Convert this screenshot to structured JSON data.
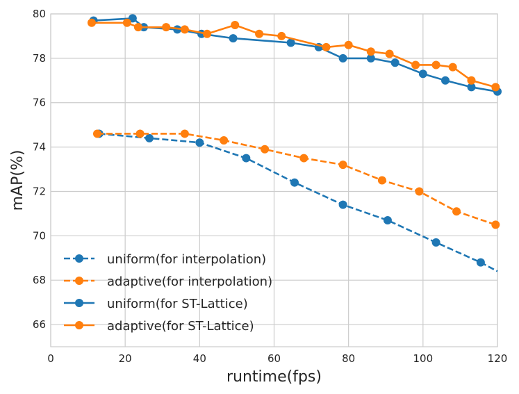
{
  "chart_data": {
    "type": "line",
    "title": "",
    "xlabel": "runtime(fps)",
    "ylabel": "mAP(%)",
    "xlim": [
      0,
      120
    ],
    "ylim": [
      65,
      80
    ],
    "xticks": [
      0,
      20,
      40,
      60,
      80,
      100,
      120
    ],
    "yticks": [
      66,
      68,
      70,
      72,
      74,
      76,
      78,
      80
    ],
    "grid": true,
    "legend_position": "lower-left",
    "series": [
      {
        "name": "uniform(for interpolation)",
        "color": "#1f77b4",
        "linestyle": "dashed",
        "x": [
          13,
          26.5,
          40,
          52.5,
          65.5,
          78.5,
          90.5,
          103.5,
          115.5,
          120
        ],
        "y": [
          74.6,
          74.4,
          74.2,
          73.5,
          72.4,
          71.4,
          70.7,
          69.7,
          68.8,
          68.4
        ],
        "markers": [
          true,
          true,
          true,
          true,
          true,
          true,
          true,
          true,
          true,
          false
        ]
      },
      {
        "name": "adaptive(for interpolation)",
        "color": "#ff7f0e",
        "linestyle": "dashed",
        "x": [
          12.5,
          24,
          36,
          46.5,
          57.5,
          68,
          78.5,
          89,
          99,
          109,
          119.5
        ],
        "y": [
          74.6,
          74.6,
          74.6,
          74.3,
          73.9,
          73.5,
          73.2,
          72.5,
          72.0,
          71.1,
          70.5
        ],
        "markers": [
          true,
          true,
          true,
          true,
          true,
          true,
          true,
          true,
          true,
          true,
          true
        ]
      },
      {
        "name": "uniform(for ST-Lattice)",
        "color": "#1f77b4",
        "linestyle": "solid",
        "x": [
          11.5,
          22,
          25,
          34,
          40.5,
          49,
          64.5,
          72,
          78.5,
          86,
          92.5,
          100,
          106,
          113,
          120
        ],
        "y": [
          79.7,
          79.8,
          79.4,
          79.3,
          79.1,
          78.9,
          78.7,
          78.5,
          78.0,
          78.0,
          77.8,
          77.3,
          77.0,
          76.7,
          76.5
        ],
        "markers": [
          true,
          true,
          true,
          true,
          true,
          true,
          true,
          true,
          true,
          true,
          true,
          true,
          true,
          true,
          true
        ]
      },
      {
        "name": "adaptive(for ST-Lattice)",
        "color": "#ff7f0e",
        "linestyle": "solid",
        "x": [
          11,
          20.5,
          23.5,
          31,
          36,
          42,
          49.5,
          56,
          62,
          74,
          80,
          86,
          91,
          98,
          103.5,
          108,
          113,
          119.5
        ],
        "y": [
          79.6,
          79.6,
          79.4,
          79.4,
          79.3,
          79.1,
          79.5,
          79.1,
          79.0,
          78.5,
          78.6,
          78.3,
          78.2,
          77.7,
          77.7,
          77.6,
          77.0,
          76.7
        ],
        "markers": [
          true,
          true,
          true,
          true,
          true,
          true,
          true,
          true,
          true,
          true,
          true,
          true,
          true,
          true,
          true,
          true,
          true,
          true
        ]
      }
    ]
  }
}
